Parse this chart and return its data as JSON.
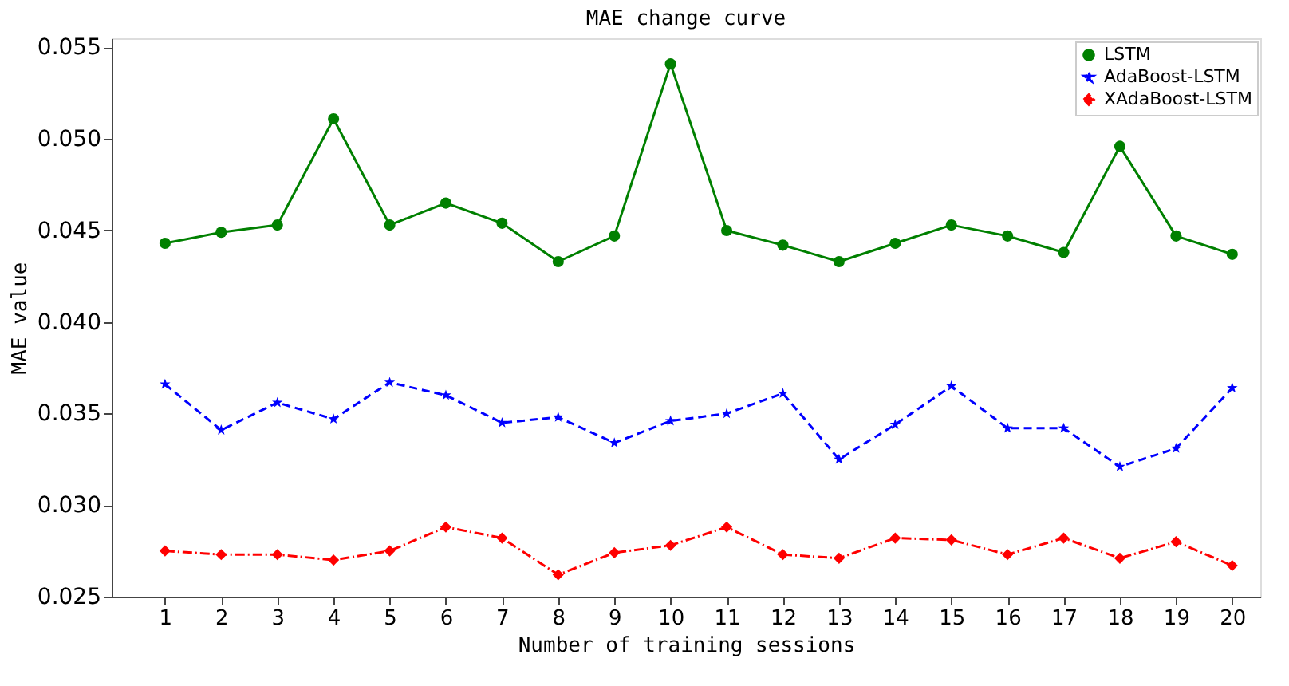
{
  "chart_data": {
    "type": "line",
    "title": "MAE change curve",
    "xlabel": "Number of training sessions",
    "ylabel": "MAE value",
    "x": [
      1,
      2,
      3,
      4,
      5,
      6,
      7,
      8,
      9,
      10,
      11,
      12,
      13,
      14,
      15,
      16,
      17,
      18,
      19,
      20
    ],
    "xlim": [
      0.05,
      20.5
    ],
    "xticks": [
      1,
      2,
      3,
      4,
      5,
      6,
      7,
      8,
      9,
      10,
      11,
      12,
      13,
      14,
      15,
      16,
      17,
      18,
      19,
      20
    ],
    "ylim": [
      0.025,
      0.0555
    ],
    "yticks": [
      {
        "value": 0.025,
        "label": "0.025"
      },
      {
        "value": 0.03,
        "label": "0.030"
      },
      {
        "value": 0.035,
        "label": "0.035"
      },
      {
        "value": 0.04,
        "label": "0.040"
      },
      {
        "value": 0.045,
        "label": "0.045"
      },
      {
        "value": 0.05,
        "label": "0.050"
      },
      {
        "value": 0.055,
        "label": "0.055"
      }
    ],
    "grid": false,
    "legend": "top right",
    "series": [
      {
        "name": "LSTM",
        "color": "#008000",
        "marker": "circle",
        "line_style": "solid",
        "values": [
          0.0443,
          0.0449,
          0.0453,
          0.0511,
          0.0453,
          0.0465,
          0.0454,
          0.0433,
          0.0447,
          0.0541,
          0.045,
          0.0442,
          0.0433,
          0.0443,
          0.0453,
          0.0447,
          0.0438,
          0.0496,
          0.0447,
          0.0437
        ]
      },
      {
        "name": "AdaBoost-LSTM",
        "color": "#0000ff",
        "marker": "star",
        "line_style": "dashed",
        "values": [
          0.0366,
          0.0341,
          0.0356,
          0.0347,
          0.0367,
          0.036,
          0.0345,
          0.0348,
          0.0334,
          0.0346,
          0.035,
          0.0361,
          0.0325,
          0.0344,
          0.0365,
          0.0342,
          0.0342,
          0.0321,
          0.0331,
          0.0364
        ]
      },
      {
        "name": "XAdaBoost-LSTM",
        "color": "#ff0000",
        "marker": "diamond",
        "line_style": "dotted",
        "values": [
          0.0275,
          0.0273,
          0.0273,
          0.027,
          0.0275,
          0.0288,
          0.0282,
          0.0262,
          0.0274,
          0.0278,
          0.0288,
          0.0273,
          0.0271,
          0.0282,
          0.0281,
          0.0273,
          0.0282,
          0.0271,
          0.028,
          0.0267
        ]
      }
    ]
  }
}
